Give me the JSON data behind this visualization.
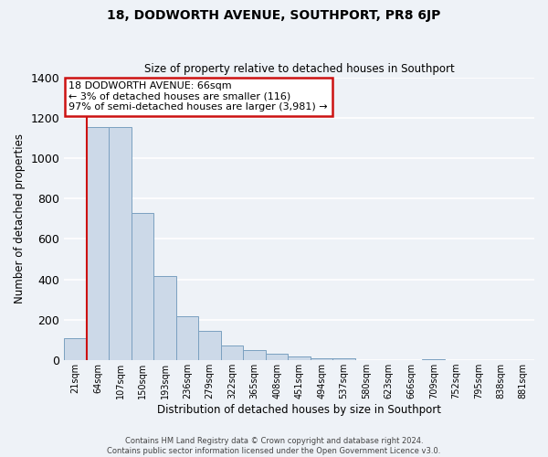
{
  "title": "18, DODWORTH AVENUE, SOUTHPORT, PR8 6JP",
  "subtitle": "Size of property relative to detached houses in Southport",
  "xlabel": "Distribution of detached houses by size in Southport",
  "ylabel": "Number of detached properties",
  "categories": [
    "21sqm",
    "64sqm",
    "107sqm",
    "150sqm",
    "193sqm",
    "236sqm",
    "279sqm",
    "322sqm",
    "365sqm",
    "408sqm",
    "451sqm",
    "494sqm",
    "537sqm",
    "580sqm",
    "623sqm",
    "666sqm",
    "709sqm",
    "752sqm",
    "795sqm",
    "838sqm",
    "881sqm"
  ],
  "values": [
    110,
    1155,
    1155,
    730,
    415,
    220,
    145,
    75,
    50,
    33,
    18,
    12,
    8,
    0,
    0,
    0,
    4,
    0,
    0,
    0,
    0
  ],
  "bar_color": "#ccd9e8",
  "bar_edge_color": "#7aa0c0",
  "property_line_color": "#cc1111",
  "annotation_title": "18 DODWORTH AVENUE: 66sqm",
  "annotation_line1": "← 3% of detached houses are smaller (116)",
  "annotation_line2": "97% of semi-detached houses are larger (3,981) →",
  "annotation_box_facecolor": "#ffffff",
  "annotation_box_edgecolor": "#cc1111",
  "ylim": [
    0,
    1400
  ],
  "yticks": [
    0,
    200,
    400,
    600,
    800,
    1000,
    1200,
    1400
  ],
  "footer_line1": "Contains HM Land Registry data © Crown copyright and database right 2024.",
  "footer_line2": "Contains public sector information licensed under the Open Government Licence v3.0.",
  "background_color": "#eef2f7",
  "grid_color": "#ffffff",
  "property_bin_index": 1
}
